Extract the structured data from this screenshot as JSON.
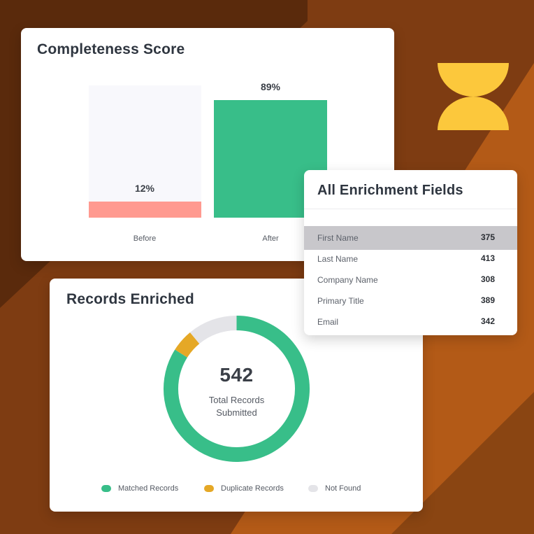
{
  "colors": {
    "background_dark": "#6a3210",
    "background_mid": "#8a4512",
    "background_light": "#b35a17",
    "logo": "#fcc83c",
    "before_fill": "#ff9a90",
    "after_fill": "#38be89",
    "matched": "#38be89",
    "duplicate": "#e5a826",
    "not_found": "#e4e4e8",
    "row_highlight": "#c8c7cb"
  },
  "logo_icon": "hourglass-logo-icon",
  "completeness": {
    "title": "Completeness Score",
    "bars": [
      {
        "label": "Before",
        "value": 12,
        "display": "12%"
      },
      {
        "label": "After",
        "value": 89,
        "display": "89%"
      }
    ]
  },
  "records": {
    "title": "Records Enriched",
    "total": "542",
    "total_label_line1": "Total Records",
    "total_label_line2": "Submitted",
    "segments": [
      {
        "name": "Matched Records",
        "fraction": 0.84
      },
      {
        "name": "Duplicate Records",
        "fraction": 0.05
      },
      {
        "name": "Not Found",
        "fraction": 0.11
      }
    ]
  },
  "fields": {
    "title": "All Enrichment Fields",
    "rows": [
      {
        "name": "First Name",
        "count": "375",
        "highlighted": true
      },
      {
        "name": "Last Name",
        "count": "413",
        "highlighted": false
      },
      {
        "name": "Company Name",
        "count": "308",
        "highlighted": false
      },
      {
        "name": "Primary Title",
        "count": "389",
        "highlighted": false
      },
      {
        "name": "Email",
        "count": "342",
        "highlighted": false
      }
    ]
  }
}
